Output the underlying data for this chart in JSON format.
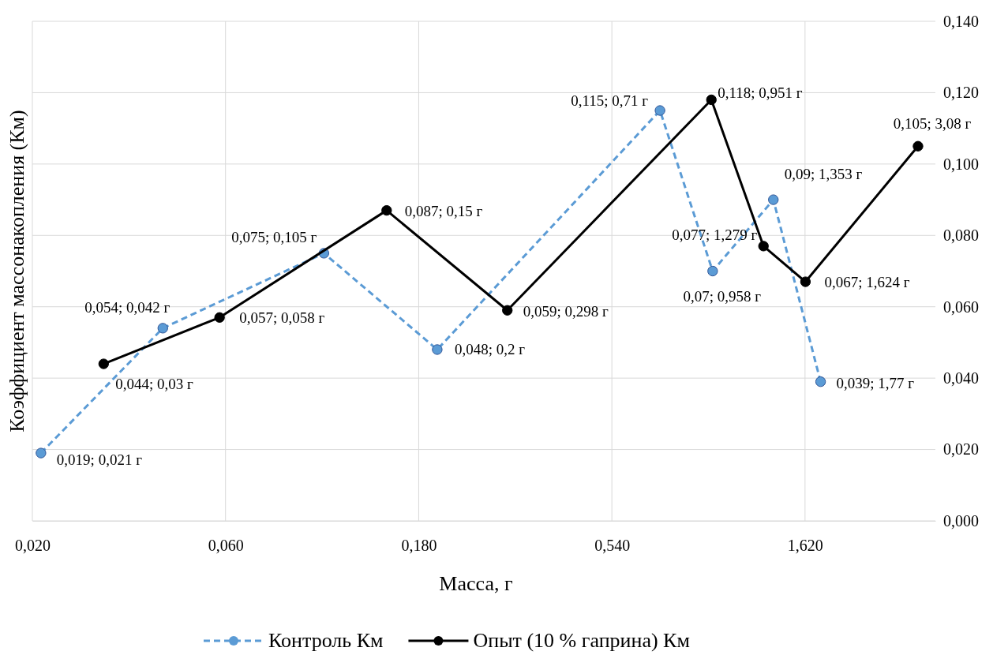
{
  "chart_data": {
    "type": "line",
    "xlabel": "Масса, г",
    "ylabel": "Коэффициент массонакопления (Км)",
    "log": "x",
    "grid": true,
    "legend": "bottom",
    "marker": "circle",
    "xlim": [
      0.02,
      3.4
    ],
    "xticks": [
      {
        "value": 0.02,
        "label": "0,020"
      },
      {
        "value": 0.06,
        "label": "0,060"
      },
      {
        "value": 0.18,
        "label": "0,180"
      },
      {
        "value": 0.54,
        "label": "0,540"
      },
      {
        "value": 1.62,
        "label": "1,620"
      }
    ],
    "ylim": [
      0,
      0.14
    ],
    "yticks": [
      {
        "value": 0,
        "label": "0,000"
      },
      {
        "value": 0.02,
        "label": "0,020"
      },
      {
        "value": 0.04,
        "label": "0,040"
      },
      {
        "value": 0.06,
        "label": "0,060"
      },
      {
        "value": 0.08,
        "label": "0,080"
      },
      {
        "value": 0.1,
        "label": "0,100"
      },
      {
        "value": 0.12,
        "label": "0,120"
      },
      {
        "value": 0.14,
        "label": "0,140"
      }
    ],
    "series": [
      {
        "name": "Контроль Км",
        "color": "#5b9bd5",
        "line_style": "dashed",
        "x": [
          0.021,
          0.042,
          0.105,
          0.2,
          0.71,
          0.958,
          1.353,
          1.77
        ],
        "values": [
          0.019,
          0.054,
          0.075,
          0.048,
          0.115,
          0.07,
          0.09,
          0.039
        ],
        "value_labels": [
          "0,019; 0,021 г",
          "0,054; 0,042 г",
          "0,075; 0,105 г",
          "0,048; 0,2 г",
          "0,115; 0,71 г",
          "0,07; 0,958 г",
          "0,09; 1,353 г",
          "0,039; 1,77 г"
        ]
      },
      {
        "name": "Опыт (10 % гаприна) Км",
        "color": "#000000",
        "line_style": "solid",
        "x": [
          0.03,
          0.058,
          0.15,
          0.298,
          0.951,
          1.279,
          1.624,
          3.08
        ],
        "values": [
          0.044,
          0.057,
          0.087,
          0.059,
          0.118,
          0.077,
          0.067,
          0.105
        ],
        "value_labels": [
          "0,044; 0,03 г",
          "0,057; 0,058 г",
          "0,087; 0,15 г",
          "0,059; 0,298 г",
          "0,118; 0,951 г",
          "0,077; 1,279 г",
          "0,067; 1,624 г",
          "0,105; 3,08 г"
        ]
      }
    ]
  }
}
